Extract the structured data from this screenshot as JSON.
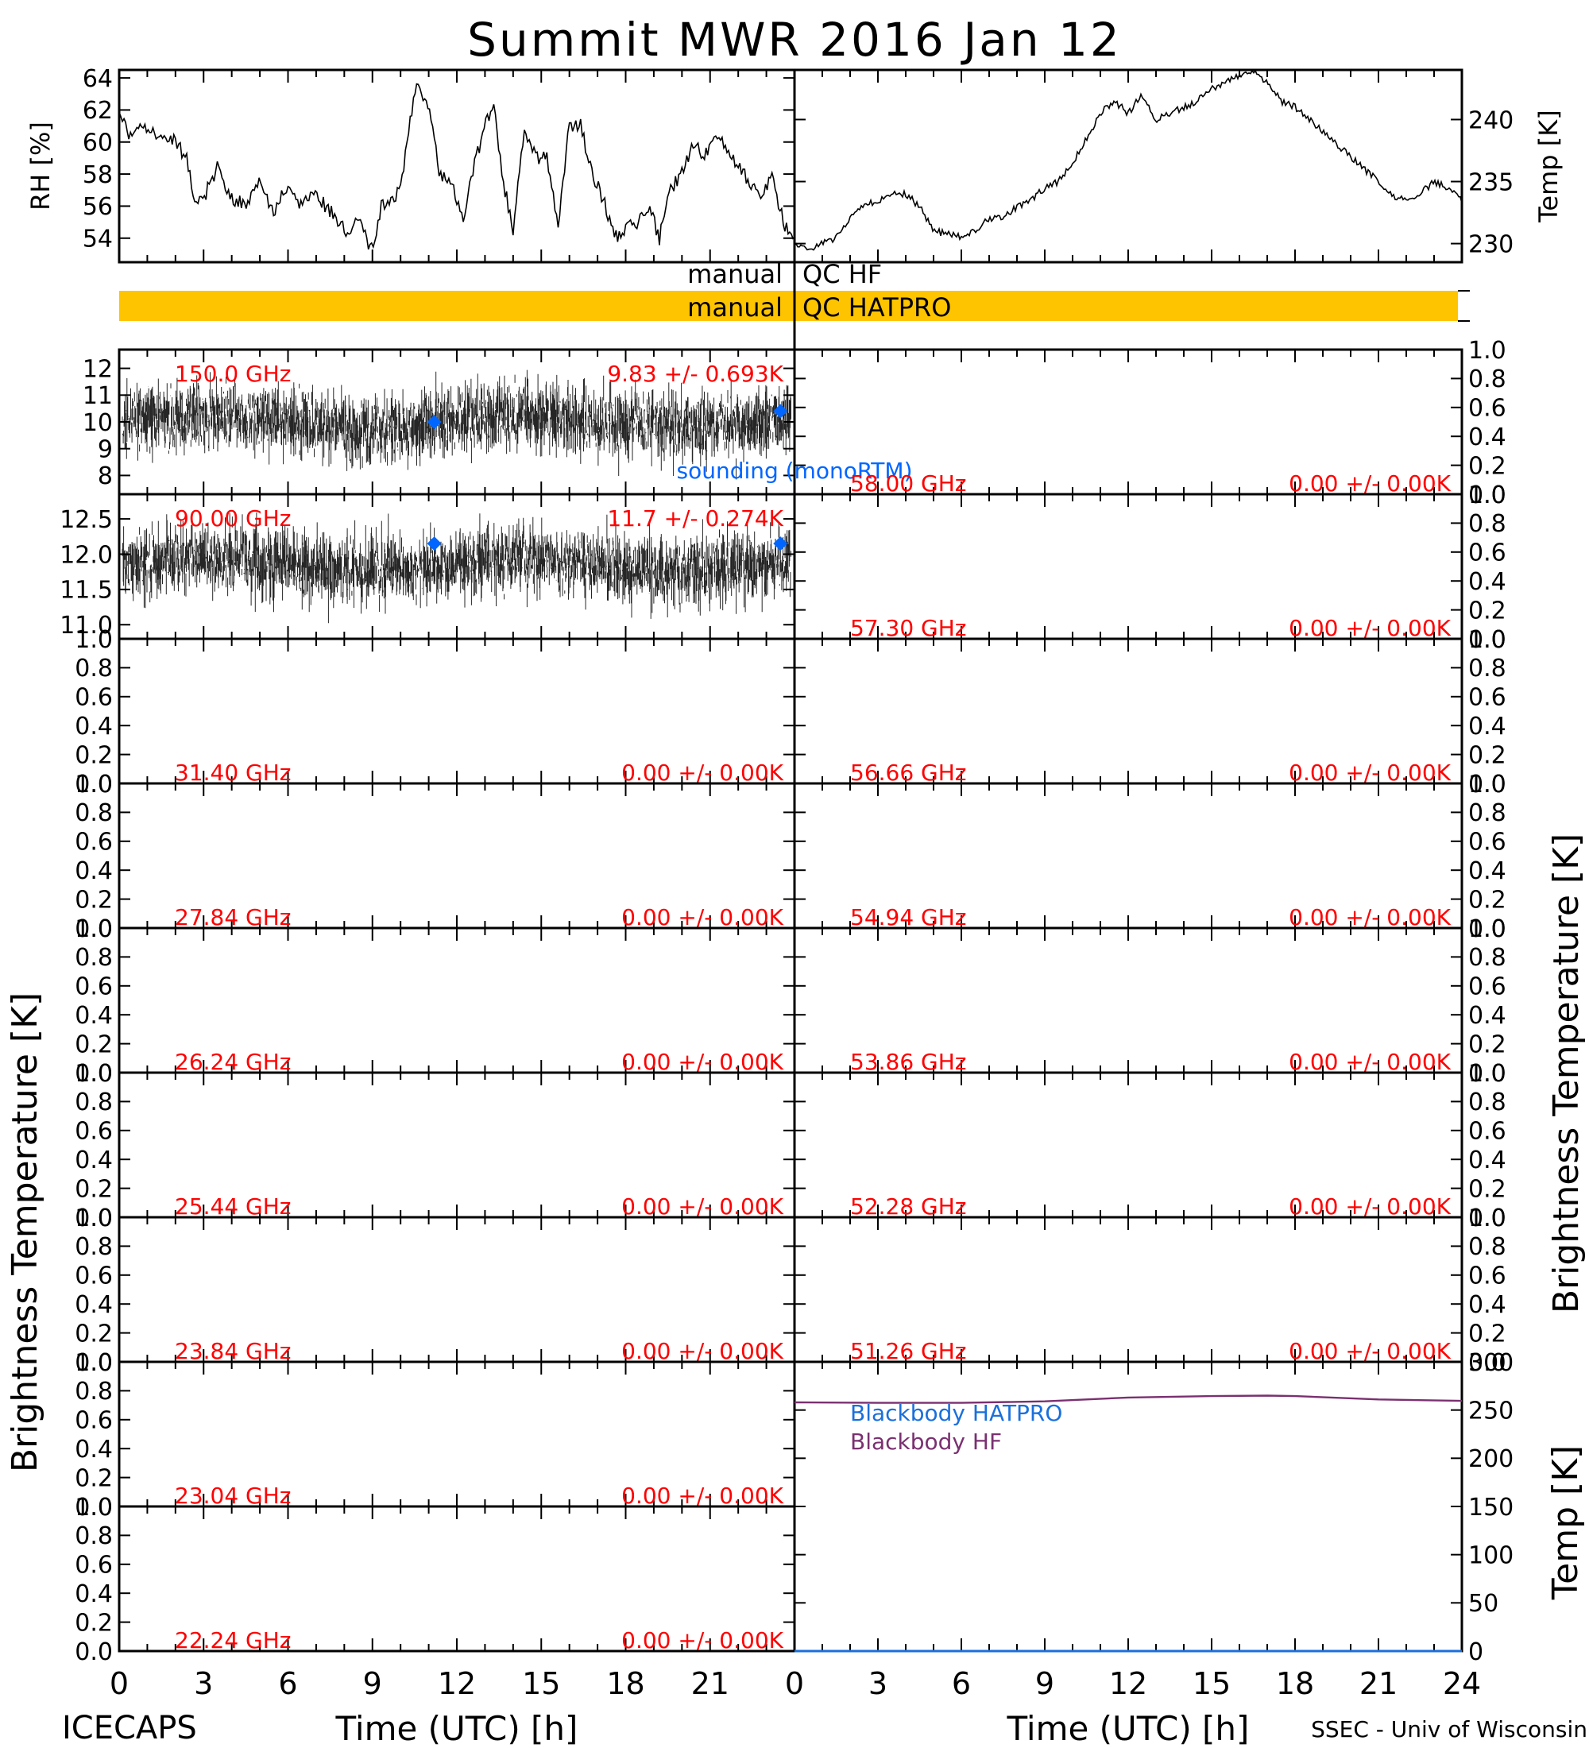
{
  "title": "Summit MWR 2016 Jan 12",
  "footer_left": "ICECAPS",
  "footer_right": "SSEC - Univ of Wisconsin",
  "colors": {
    "annotation": "#ff0000",
    "sounding": "#0066ff",
    "qc_bar": "#ffc400",
    "blackbody_hatpro": "#1a6fdc",
    "blackbody_hf": "#7a3070",
    "trace": "#000000"
  },
  "chart_data": {
    "type": "line",
    "xlabel": "Time (UTC) [h]",
    "x_range": [
      0,
      24
    ],
    "x_ticks": [
      0,
      3,
      6,
      9,
      12,
      15,
      18,
      21,
      24
    ],
    "left_x_tick_labels": [
      "0",
      "3",
      "6",
      "9",
      "12",
      "15",
      "18",
      "21",
      ""
    ],
    "right_x_tick_labels": [
      "0",
      "3",
      "6",
      "9",
      "12",
      "15",
      "18",
      "21",
      "24"
    ],
    "rh_panel": {
      "ylabel": "RH [%]",
      "ylim": [
        52.5,
        64.5
      ],
      "ticks": [
        54,
        56,
        58,
        60,
        62,
        64
      ],
      "series": {
        "x": [
          0,
          0.4,
          0.8,
          1.2,
          1.6,
          2,
          2.4,
          2.7,
          3,
          3.5,
          4,
          4.5,
          5,
          5.5,
          6,
          6.5,
          7,
          7.3,
          7.6,
          8,
          8.5,
          9,
          9.3,
          9.6,
          10,
          10.3,
          10.6,
          11,
          11.4,
          11.8,
          12.2,
          12.6,
          13,
          13.3,
          13.6,
          14,
          14.4,
          14.8,
          15.2,
          15.6,
          16,
          16.4,
          16.8,
          17.2,
          17.6,
          18,
          18.4,
          18.8,
          19.2,
          19.6,
          20,
          20.4,
          20.8,
          21.2,
          21.6,
          22,
          22.4,
          22.8,
          23.2,
          23.6,
          24
        ],
        "y": [
          62,
          60.2,
          61,
          60.5,
          60.6,
          60,
          59,
          56,
          56.5,
          58.5,
          56.5,
          56,
          57.5,
          55.5,
          57.5,
          56,
          57,
          56,
          55.5,
          54.5,
          55,
          53.2,
          56,
          56,
          57,
          61,
          64,
          62,
          58,
          57.5,
          55,
          58.5,
          61,
          62.5,
          58,
          54.5,
          61,
          59,
          59,
          55,
          61,
          61,
          58,
          56.5,
          54,
          54.5,
          55,
          56,
          54,
          57,
          58,
          60,
          59,
          60.5,
          59.5,
          58.5,
          57.5,
          56.5,
          58,
          55,
          54
        ]
      }
    },
    "temp_panel": {
      "ylabel": "Temp [K]",
      "ylim": [
        228.5,
        244
      ],
      "ticks": [
        230,
        235,
        240
      ],
      "series": {
        "x": [
          0,
          0.5,
          1,
          1.5,
          2,
          2.5,
          3,
          3.5,
          4,
          4.5,
          5,
          5.5,
          6,
          6.5,
          7,
          7.5,
          8,
          8.5,
          9,
          9.5,
          10,
          10.5,
          11,
          11.5,
          12,
          12.5,
          13,
          13.5,
          14,
          14.5,
          15,
          15.5,
          16,
          16.5,
          17,
          17.5,
          18,
          18.5,
          19,
          19.5,
          20,
          20.5,
          21,
          21.5,
          22,
          22.5,
          23,
          23.5,
          24
        ],
        "y": [
          230,
          229.5,
          230,
          230.5,
          232,
          233,
          233.5,
          234,
          234,
          233,
          231,
          230.8,
          230.5,
          231,
          232,
          232,
          233,
          233.5,
          234.5,
          235,
          236.5,
          238.5,
          240.5,
          241.5,
          240.5,
          242,
          240,
          240.5,
          241,
          241.5,
          242.5,
          243,
          243.5,
          244,
          243,
          241.5,
          241,
          240,
          239,
          238,
          237,
          236,
          235,
          233.8,
          233.5,
          234,
          235,
          234.5,
          233.5
        ]
      }
    },
    "qc_bars": [
      {
        "left_text": "manual",
        "right_text": "QC HF",
        "filled": false
      },
      {
        "left_text": "manual",
        "right_text": "QC HATPRO",
        "filled": true
      }
    ],
    "ylabel_brightness": "Brightness Temperature [K]",
    "right_bottom_ylabel": "Temp [K]",
    "unit_ticks": [
      "0.0",
      "0.2",
      "0.4",
      "0.6",
      "0.8",
      "1.0"
    ],
    "left_panels": [
      {
        "freq": "150.0 GHz",
        "stats": "9.83 +/- 0.693K",
        "ylim": [
          7.3,
          12.7
        ],
        "ticks": [
          "8",
          "9",
          "10",
          "11",
          "12"
        ],
        "tick_values": [
          8,
          9,
          10,
          11,
          12
        ],
        "mean": 10,
        "std": 0.9,
        "sounding": [
          {
            "x": 11.2,
            "y": 10
          },
          {
            "x": 23.5,
            "y": 10.4
          }
        ],
        "sounding_label": "sounding (monoRTM)"
      },
      {
        "freq": "90.00 GHz",
        "stats": "11.7 +/- 0.274K",
        "ylim": [
          10.8,
          12.85
        ],
        "ticks": [
          "11.0",
          "11.5",
          "12.0",
          "12.5"
        ],
        "tick_values": [
          11,
          11.5,
          12,
          12.5
        ],
        "mean": 11.85,
        "std": 0.35,
        "sounding": [
          {
            "x": 11.2,
            "y": 12.15
          },
          {
            "x": 23.5,
            "y": 12.15
          }
        ]
      },
      {
        "freq": "31.40 GHz",
        "stats": "0.00 +/- 0.00K"
      },
      {
        "freq": "27.84 GHz",
        "stats": "0.00 +/- 0.00K"
      },
      {
        "freq": "26.24 GHz",
        "stats": "0.00 +/- 0.00K"
      },
      {
        "freq": "25.44 GHz",
        "stats": "0.00 +/- 0.00K"
      },
      {
        "freq": "23.84 GHz",
        "stats": "0.00 +/- 0.00K"
      },
      {
        "freq": "23.04 GHz",
        "stats": "0.00 +/- 0.00K"
      },
      {
        "freq": "22.24 GHz",
        "stats": "0.00 +/- 0.00K"
      }
    ],
    "right_panels": [
      {
        "freq": "58.00 GHz",
        "stats": "0.00 +/- 0.00K"
      },
      {
        "freq": "57.30 GHz",
        "stats": "0.00 +/- 0.00K"
      },
      {
        "freq": "56.66 GHz",
        "stats": "0.00 +/- 0.00K"
      },
      {
        "freq": "54.94 GHz",
        "stats": "0.00 +/- 0.00K"
      },
      {
        "freq": "53.86 GHz",
        "stats": "0.00 +/- 0.00K"
      },
      {
        "freq": "52.28 GHz",
        "stats": "0.00 +/- 0.00K"
      },
      {
        "freq": "51.26 GHz",
        "stats": "0.00 +/- 0.00K"
      }
    ],
    "blackbody_panel": {
      "ylim": [
        0,
        300
      ],
      "ticks": [
        0,
        50,
        100,
        150,
        200,
        250,
        300
      ],
      "legend": [
        {
          "name": "Blackbody HATPRO",
          "color_key": "blackbody_hatpro"
        },
        {
          "name": "Blackbody HF",
          "color_key": "blackbody_hf"
        }
      ],
      "hf_series": {
        "x": [
          0,
          3,
          6,
          9,
          12,
          15,
          17,
          18,
          21,
          24
        ],
        "y": [
          258,
          257.5,
          257.5,
          259,
          263,
          264.5,
          265,
          264.5,
          261,
          259.5
        ]
      },
      "hatpro_series": {
        "x": [
          0,
          24
        ],
        "y": [
          0,
          0
        ]
      }
    }
  }
}
